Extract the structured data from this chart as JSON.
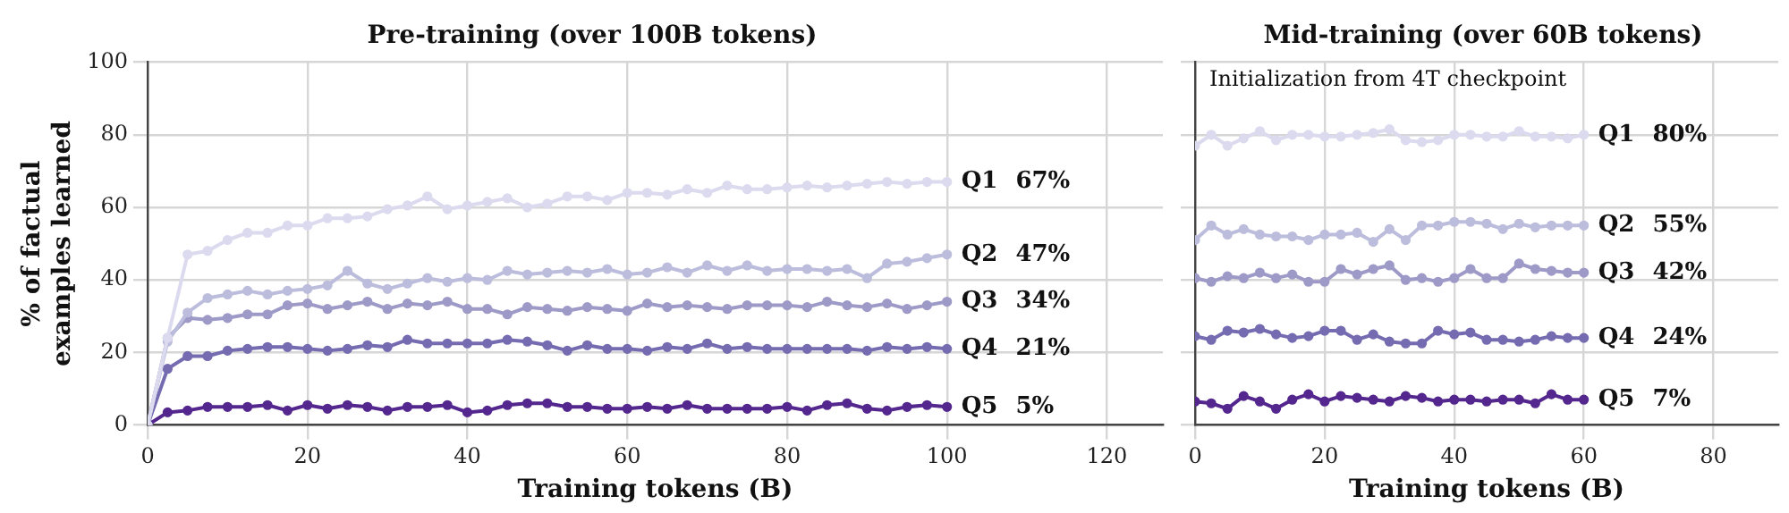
{
  "chart_data": [
    {
      "type": "line",
      "title": "Pre-training (over 100B tokens)",
      "xlabel": "Training tokens (B)",
      "ylabel": "% of factual examples learned",
      "x": [
        0,
        2.5,
        5,
        7.5,
        10,
        12.5,
        15,
        17.5,
        20,
        22.5,
        25,
        27.5,
        30,
        32.5,
        35,
        37.5,
        40,
        42.5,
        45,
        47.5,
        50,
        52.5,
        55,
        57.5,
        60,
        62.5,
        65,
        67.5,
        70,
        72.5,
        75,
        77.5,
        80,
        82.5,
        85,
        87.5,
        90,
        92.5,
        95,
        97.5,
        100
      ],
      "xlim": [
        0,
        127
      ],
      "xticks": [
        0,
        20,
        40,
        60,
        80,
        100,
        120
      ],
      "ylim": [
        0,
        100
      ],
      "yticks": [
        0,
        20,
        40,
        60,
        80,
        100
      ],
      "grid": true,
      "marker": "circle",
      "series": [
        {
          "name": "Q1",
          "color": "#dcdaee",
          "values": [
            0,
            24,
            47,
            48,
            51,
            53,
            53,
            55,
            55,
            57,
            57,
            57.5,
            59.5,
            60.5,
            63,
            59.5,
            60.5,
            61.5,
            62.5,
            60,
            61,
            63,
            63,
            62,
            64,
            64,
            63.5,
            65,
            64,
            66,
            65,
            65,
            65.5,
            66,
            65.5,
            66,
            66.5,
            67,
            66.5,
            67,
            67
          ]
        },
        {
          "name": "Q2",
          "color": "#bcbddc",
          "values": [
            0,
            23,
            31,
            35,
            36,
            37,
            36,
            37,
            37.5,
            38.5,
            42.5,
            39,
            37.5,
            39,
            40.5,
            39.5,
            40.5,
            40,
            42.5,
            41.5,
            42,
            42.5,
            42,
            43,
            41.5,
            42,
            43.5,
            42,
            44,
            42.5,
            44,
            42.5,
            43,
            43,
            42.5,
            43,
            40.5,
            44.5,
            45,
            46,
            47
          ]
        },
        {
          "name": "Q3",
          "color": "#9e9ac8",
          "values": [
            0,
            24,
            29.5,
            29,
            29.5,
            30.5,
            30.5,
            33,
            33.5,
            32,
            33,
            34,
            32,
            33.5,
            33,
            34,
            32,
            32,
            30.5,
            32.5,
            32,
            31.5,
            32.5,
            32,
            31.5,
            33.5,
            32.5,
            33,
            32.5,
            32,
            33,
            33,
            33,
            32.5,
            34,
            33,
            32.5,
            33.5,
            32,
            33,
            34
          ]
        },
        {
          "name": "Q4",
          "color": "#756bb1",
          "values": [
            0,
            15.5,
            19,
            19,
            20.5,
            21,
            21.5,
            21.5,
            21,
            20.5,
            21,
            22,
            21.5,
            23.5,
            22.5,
            22.5,
            22.5,
            22.5,
            23.5,
            23,
            22,
            20.5,
            22,
            21,
            21,
            20.5,
            21.5,
            21,
            22.5,
            21,
            21.5,
            21,
            21,
            21,
            21,
            21,
            20.5,
            21.5,
            21,
            21.5,
            21
          ]
        },
        {
          "name": "Q5",
          "color": "#54278f",
          "values": [
            0,
            3.5,
            4,
            5,
            5,
            5,
            5.5,
            4,
            5.5,
            4.5,
            5.5,
            5,
            4,
            5,
            5,
            5.5,
            3.5,
            4,
            5.5,
            6,
            6,
            5,
            5,
            4.5,
            4.5,
            5,
            4.5,
            5.5,
            4.5,
            4.5,
            4.5,
            4.5,
            5,
            4,
            5.5,
            6,
            4.5,
            4,
            5,
            5.5,
            5
          ]
        }
      ],
      "annotations": [
        "67%",
        "47%",
        "34%",
        "21%",
        "5%"
      ]
    },
    {
      "type": "line",
      "title": "Mid-training (over 60B tokens)",
      "xlabel": "Training tokens (B)",
      "x": [
        0,
        2.5,
        5,
        7.5,
        10,
        12.5,
        15,
        17.5,
        20,
        22.5,
        25,
        27.5,
        30,
        32.5,
        35,
        37.5,
        40,
        42.5,
        45,
        47.5,
        50,
        52.5,
        55,
        57.5,
        60
      ],
      "xlim": [
        0,
        90
      ],
      "xticks": [
        0,
        20,
        40,
        60,
        80
      ],
      "ylim": [
        0,
        100
      ],
      "yticks": [
        0,
        20,
        40,
        60,
        80,
        100
      ],
      "tick_labels": "x",
      "grid": true,
      "marker": "circle",
      "series": [
        {
          "name": "Q1",
          "color": "#dcdaee",
          "values": [
            77,
            80,
            77,
            79,
            81,
            78.5,
            80,
            80,
            79.5,
            79.5,
            80,
            80.5,
            81.5,
            78.5,
            78,
            78.5,
            80,
            80,
            79.5,
            79.5,
            81,
            79.5,
            79.5,
            79,
            80
          ]
        },
        {
          "name": "Q2",
          "color": "#bcbddc",
          "values": [
            51,
            55,
            52.5,
            54,
            52.5,
            52,
            52,
            51,
            52.5,
            52.5,
            53,
            50.5,
            54,
            51,
            55,
            55,
            56,
            56,
            55.5,
            54,
            55.5,
            54.5,
            55,
            55,
            55
          ]
        },
        {
          "name": "Q3",
          "color": "#9e9ac8",
          "values": [
            40.5,
            39.5,
            41,
            40.5,
            42,
            40.5,
            41.5,
            39.5,
            39.5,
            43,
            41.5,
            43,
            44,
            40,
            40.5,
            39.5,
            40.5,
            43,
            40.5,
            40.5,
            44.5,
            43,
            42.5,
            42,
            42
          ]
        },
        {
          "name": "Q4",
          "color": "#756bb1",
          "values": [
            24.5,
            23.5,
            26,
            25.5,
            26.5,
            25,
            24,
            24.5,
            26,
            26,
            23.5,
            25,
            23,
            22.5,
            22.5,
            26,
            25,
            25.5,
            23.5,
            23.5,
            23,
            23.5,
            24.5,
            24,
            24
          ]
        },
        {
          "name": "Q5",
          "color": "#54278f",
          "values": [
            6.5,
            6,
            4.5,
            8,
            6.5,
            4.5,
            7,
            8.5,
            6.5,
            8,
            7.5,
            7,
            6.5,
            8,
            7.5,
            6.5,
            7,
            7,
            6.5,
            7,
            7,
            6,
            8.5,
            7,
            7
          ]
        }
      ],
      "annotations": [
        "80%",
        "55%",
        "42%",
        "24%",
        "7%",
        "Initialization from 4T checkpoint"
      ]
    }
  ]
}
